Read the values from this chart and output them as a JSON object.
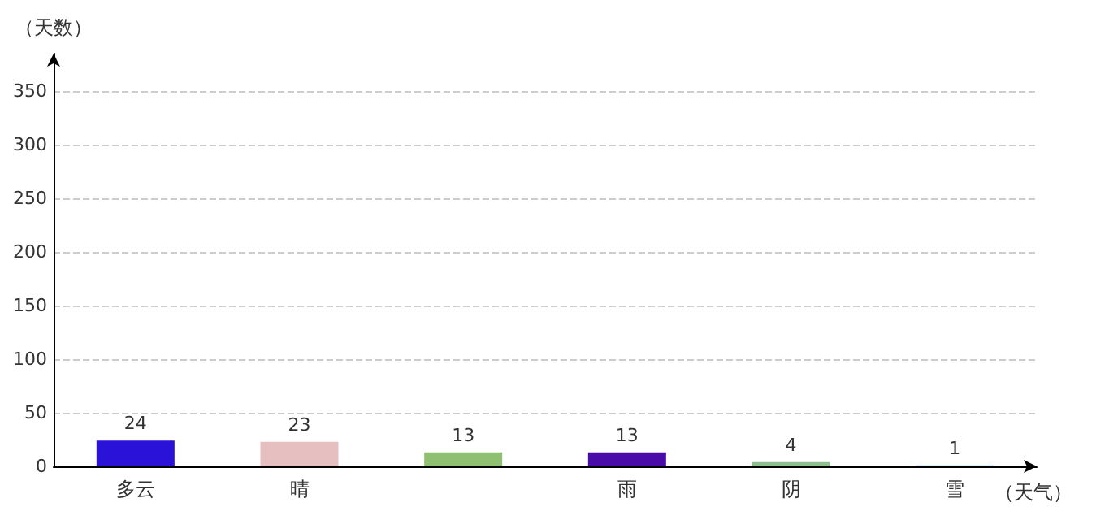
{
  "chart_data": {
    "type": "bar",
    "xlabel": "（天气）",
    "ylabel": "（天数）",
    "categories": [
      "多云",
      "晴",
      null,
      "雨",
      "阴",
      "雪"
    ],
    "values": [
      24,
      23,
      13,
      13,
      4,
      1
    ],
    "colors": [
      "#2a12d8",
      "#e6c0c0",
      "#8fbf70",
      "#4a0ca8",
      "#8fbf8f",
      "#6fe0e0"
    ],
    "ylim": [
      0,
      385
    ],
    "yticks": [
      0,
      50,
      100,
      150,
      200,
      250,
      300,
      350
    ],
    "grid": "y",
    "data_labels": true
  }
}
